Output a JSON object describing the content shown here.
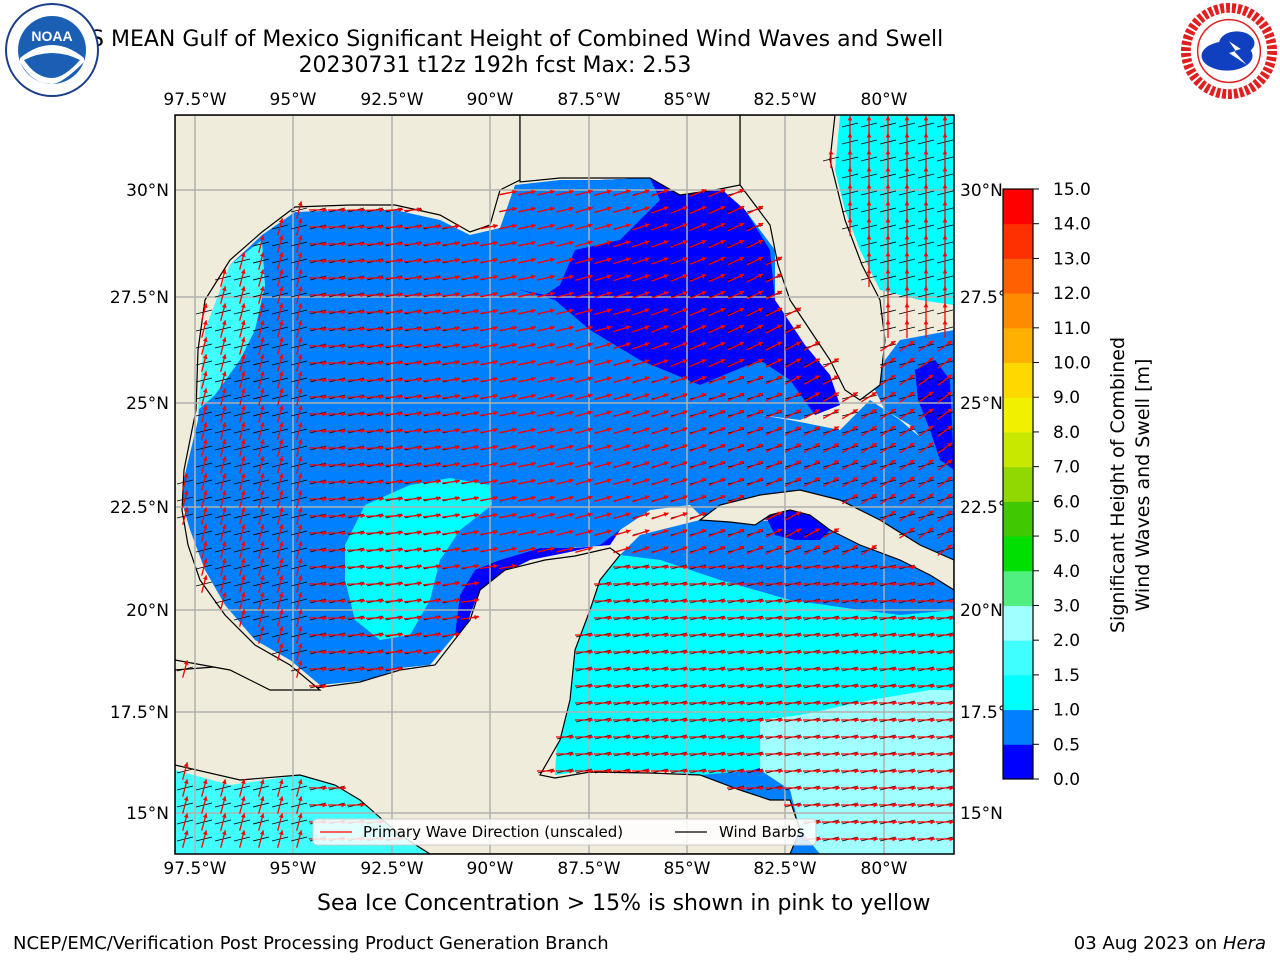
{
  "title": {
    "line1": "GEFS MEAN Gulf of Mexico Significant Height of Combined Wind Waves and Swell",
    "line2": "20230731 t12z 192h fcst   Max: 2.53"
  },
  "logos": {
    "left": {
      "icon": "noaa-logo-icon",
      "text": "NOAA",
      "ring_text": "NATIONAL OCEANIC AND ATMOSPHERIC ADMINISTRATION",
      "bottom_text": "U.S. DEPARTMENT OF COMMERCE"
    },
    "right": {
      "icon": "nws-logo-icon",
      "ring_text": "NATIONAL WEATHER SERVICE"
    }
  },
  "map": {
    "lon_ticks": [
      "97.5°W",
      "95°W",
      "92.5°W",
      "90°W",
      "87.5°W",
      "85°W",
      "82.5°W",
      "80°W"
    ],
    "lat_ticks_left": [
      "30°N",
      "27.5°N",
      "25°N",
      "22.5°N",
      "20°N",
      "17.5°N",
      "15°N"
    ],
    "lat_ticks_right": [
      "30°N",
      "27.5°N",
      "25°N",
      "22.5°N",
      "20°N",
      "17.5°N",
      "15°N"
    ],
    "lon_range": [
      -98,
      -78.2
    ],
    "lat_range": [
      14,
      31.8
    ],
    "colors": {
      "land": "#efecdb",
      "coast": "#000000",
      "grid": "#b0b0b0",
      "arrow": "#ff0000",
      "barb": "#000000"
    },
    "legend": {
      "primary_wave": "Primary Wave Direction (unscaled)",
      "wind_barbs": "Wind Barbs"
    }
  },
  "colorbar": {
    "label_line1": "Significant Height of Combined",
    "label_line2": "Wind Waves and Swell [m]",
    "ticks": [
      "0.0",
      "0.5",
      "1.0",
      "1.5",
      "2.0",
      "3.0",
      "4.0",
      "5.0",
      "6.0",
      "7.0",
      "8.0",
      "9.0",
      "10.0",
      "11.0",
      "12.0",
      "13.0",
      "14.0",
      "15.0"
    ],
    "colors": [
      "#0000ff",
      "#0080ff",
      "#00ffff",
      "#40ffff",
      "#a0ffff",
      "#50f080",
      "#00e000",
      "#40c800",
      "#90d800",
      "#c8e800",
      "#f0f000",
      "#ffd800",
      "#ffb000",
      "#ff8c00",
      "#ff6000",
      "#ff3000",
      "#ff0000"
    ]
  },
  "footer": {
    "subtitle": "Sea Ice Concentration > 15% is shown in pink to yellow",
    "credit": "NCEP/EMC/Verification Post Processing Product Generation Branch",
    "date": "03 Aug 2023 on ",
    "machine": "Hera"
  }
}
